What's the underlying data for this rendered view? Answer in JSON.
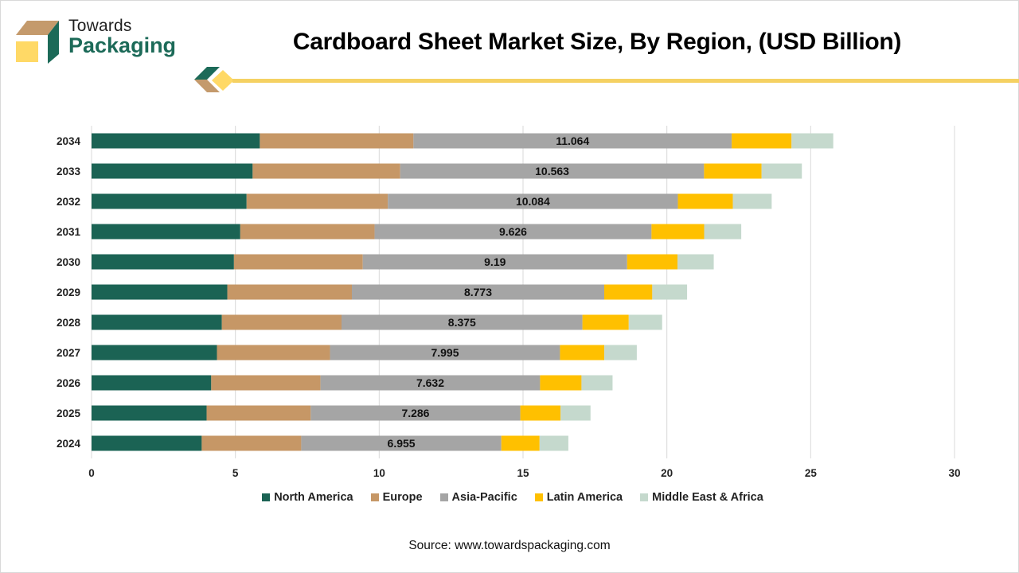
{
  "brand": {
    "line1": "Towards",
    "line2": "Packaging",
    "colors": {
      "green": "#1c6a58",
      "tan": "#c49a6c",
      "yellow": "#ffd966"
    }
  },
  "source": "Source: www.towardspackaging.com",
  "chart_data": {
    "type": "bar",
    "orientation": "horizontal",
    "stacked": true,
    "title": "Cardboard Sheet Market Size, By Region, (USD Billion)",
    "xlabel": "",
    "ylabel": "",
    "xlim": [
      0,
      30
    ],
    "xticks": [
      0,
      5,
      10,
      15,
      20,
      25,
      30
    ],
    "grid": "vertical",
    "legend_position": "bottom",
    "categories": [
      "2034",
      "2033",
      "2032",
      "2031",
      "2030",
      "2029",
      "2028",
      "2027",
      "2026",
      "2025",
      "2024"
    ],
    "series": [
      {
        "name": "North America",
        "color": "#1b6354",
        "values": [
          5.85,
          5.6,
          5.39,
          5.17,
          4.95,
          4.72,
          4.53,
          4.36,
          4.16,
          4.0,
          3.83
        ]
      },
      {
        "name": "Europe",
        "color": "#c69766",
        "values": [
          5.34,
          5.13,
          4.91,
          4.67,
          4.48,
          4.33,
          4.16,
          3.93,
          3.8,
          3.62,
          3.46
        ]
      },
      {
        "name": "Asia-Pacific",
        "color": "#a5a5a5",
        "values": [
          11.064,
          10.563,
          10.084,
          9.626,
          9.19,
          8.773,
          8.375,
          7.995,
          7.632,
          7.286,
          6.955
        ],
        "show_labels": true
      },
      {
        "name": "Latin America",
        "color": "#ffc000",
        "values": [
          2.08,
          2.0,
          1.91,
          1.83,
          1.75,
          1.67,
          1.61,
          1.54,
          1.44,
          1.4,
          1.33
        ]
      },
      {
        "name": "Middle East & Africa",
        "color": "#c5d9cd",
        "values": [
          1.45,
          1.4,
          1.35,
          1.29,
          1.26,
          1.21,
          1.16,
          1.13,
          1.08,
          1.04,
          1.0
        ]
      }
    ],
    "data_labels": [
      "11.064",
      "10.563",
      "10.084",
      "9.626",
      "9.19",
      "8.773",
      "8.375",
      "7.995",
      "7.632",
      "7.286",
      "6.955"
    ]
  }
}
